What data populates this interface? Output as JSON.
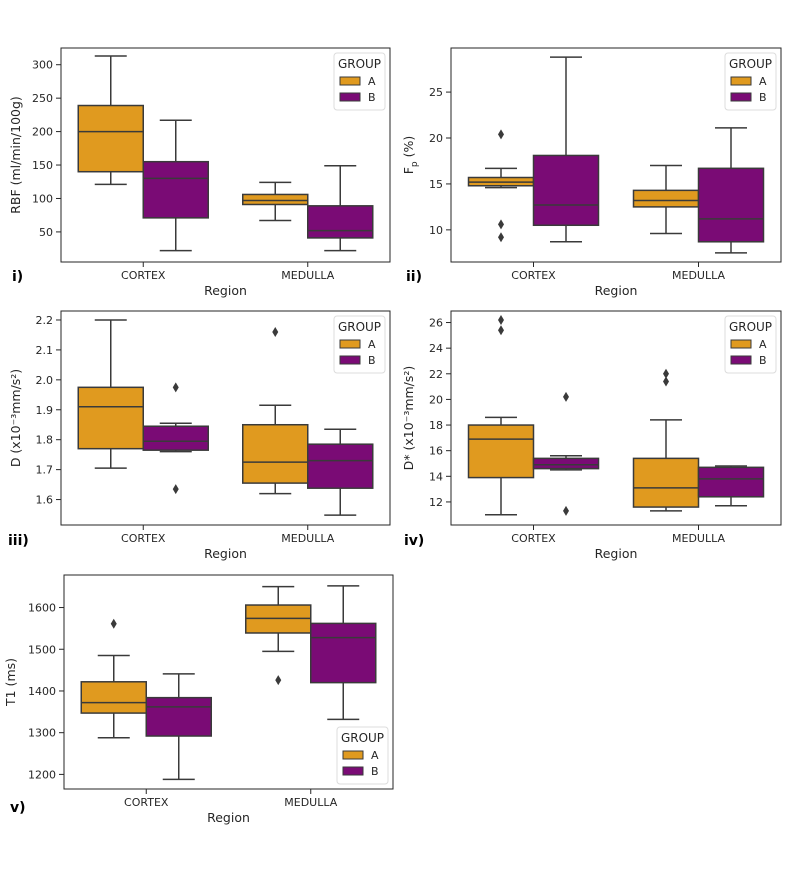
{
  "colors": {
    "A": "#e09a1f",
    "B": "#7a0b75",
    "line": "#3a3a3a"
  },
  "legend": {
    "title": "GROUP",
    "entries": [
      "A",
      "B"
    ]
  },
  "chart_data": [
    {
      "type": "box",
      "panel_label": "i)",
      "xlabel": "Region",
      "ylabel": "RBF (ml/min/100g)",
      "ylim": [
        5,
        325
      ],
      "yticks": [
        50,
        100,
        150,
        200,
        250,
        300
      ],
      "categories": [
        "CORTEX",
        "MEDULLA"
      ],
      "legend_position": "top-right",
      "series": [
        {
          "name": "A",
          "boxes": [
            {
              "whislo": 121,
              "q1": 140,
              "med": 200,
              "q3": 239,
              "whishi": 313,
              "fliers": []
            },
            {
              "whislo": 67,
              "q1": 91,
              "med": 97,
              "q3": 106,
              "whishi": 124,
              "fliers": []
            }
          ]
        },
        {
          "name": "B",
          "boxes": [
            {
              "whislo": 22,
              "q1": 71,
              "med": 130,
              "q3": 155,
              "whishi": 217,
              "fliers": []
            },
            {
              "whislo": 22,
              "q1": 41,
              "med": 52,
              "q3": 89,
              "whishi": 149,
              "fliers": []
            }
          ]
        }
      ]
    },
    {
      "type": "box",
      "panel_label": "ii)",
      "xlabel": "Region",
      "ylabel": "F_p (%)",
      "ylim": [
        6.5,
        29.8
      ],
      "yticks": [
        10,
        15,
        20,
        25
      ],
      "categories": [
        "CORTEX",
        "MEDULLA"
      ],
      "legend_position": "top-right",
      "series": [
        {
          "name": "A",
          "boxes": [
            {
              "whislo": 14.6,
              "q1": 14.8,
              "med": 15.2,
              "q3": 15.7,
              "whishi": 16.7,
              "fliers": [
                20.4,
                10.6,
                9.2
              ]
            },
            {
              "whislo": 9.6,
              "q1": 12.5,
              "med": 13.2,
              "q3": 14.3,
              "whishi": 17.0,
              "fliers": []
            }
          ]
        },
        {
          "name": "B",
          "boxes": [
            {
              "whislo": 8.7,
              "q1": 10.5,
              "med": 12.7,
              "q3": 18.1,
              "whishi": 28.8,
              "fliers": []
            },
            {
              "whislo": 7.5,
              "q1": 8.7,
              "med": 11.2,
              "q3": 16.7,
              "whishi": 21.1,
              "fliers": []
            }
          ]
        }
      ]
    },
    {
      "type": "box",
      "panel_label": "iii)",
      "xlabel": "Region",
      "ylabel": "D (x10⁻³mm/s²)",
      "ylim": [
        1.515,
        2.23
      ],
      "yticks": [
        1.6,
        1.7,
        1.8,
        1.9,
        2.0,
        2.1,
        2.2
      ],
      "categories": [
        "CORTEX",
        "MEDULLA"
      ],
      "legend_position": "top-right",
      "series": [
        {
          "name": "A",
          "boxes": [
            {
              "whislo": 1.705,
              "q1": 1.77,
              "med": 1.91,
              "q3": 1.975,
              "whishi": 2.2,
              "fliers": []
            },
            {
              "whislo": 1.62,
              "q1": 1.655,
              "med": 1.725,
              "q3": 1.85,
              "whishi": 1.915,
              "fliers": [
                2.16
              ]
            }
          ]
        },
        {
          "name": "B",
          "boxes": [
            {
              "whislo": 1.76,
              "q1": 1.765,
              "med": 1.795,
              "q3": 1.845,
              "whishi": 1.855,
              "fliers": [
                1.975,
                1.635
              ]
            },
            {
              "whislo": 1.548,
              "q1": 1.638,
              "med": 1.73,
              "q3": 1.785,
              "whishi": 1.835,
              "fliers": []
            }
          ]
        }
      ]
    },
    {
      "type": "box",
      "panel_label": "iv)",
      "xlabel": "Region",
      "ylabel": "D* (x10⁻³mm/s²)",
      "ylim": [
        10.2,
        26.9
      ],
      "yticks": [
        12,
        14,
        16,
        18,
        20,
        22,
        24,
        26
      ],
      "categories": [
        "CORTEX",
        "MEDULLA"
      ],
      "legend_position": "top-right",
      "series": [
        {
          "name": "A",
          "boxes": [
            {
              "whislo": 11.0,
              "q1": 13.9,
              "med": 16.9,
              "q3": 18.0,
              "whishi": 18.6,
              "fliers": [
                26.2,
                25.4
              ]
            },
            {
              "whislo": 11.3,
              "q1": 11.6,
              "med": 13.1,
              "q3": 15.4,
              "whishi": 18.4,
              "fliers": [
                22.0,
                21.4
              ]
            }
          ]
        },
        {
          "name": "B",
          "boxes": [
            {
              "whislo": 14.5,
              "q1": 14.6,
              "med": 14.9,
              "q3": 15.4,
              "whishi": 15.6,
              "fliers": [
                20.2,
                11.3
              ]
            },
            {
              "whislo": 11.7,
              "q1": 12.4,
              "med": 13.8,
              "q3": 14.7,
              "whishi": 14.8,
              "fliers": []
            }
          ]
        }
      ]
    },
    {
      "type": "box",
      "panel_label": "v)",
      "xlabel": "Region",
      "ylabel": "T1 (ms)",
      "ylim": [
        1165,
        1678
      ],
      "yticks": [
        1200,
        1300,
        1400,
        1500,
        1600
      ],
      "categories": [
        "CORTEX",
        "MEDULLA"
      ],
      "legend_position": "bottom-right",
      "series": [
        {
          "name": "A",
          "boxes": [
            {
              "whislo": 1288,
              "q1": 1347,
              "med": 1372,
              "q3": 1422,
              "whishi": 1485,
              "fliers": [
                1561
              ]
            },
            {
              "whislo": 1495,
              "q1": 1539,
              "med": 1574,
              "q3": 1606,
              "whishi": 1650,
              "fliers": [
                1426
              ]
            }
          ]
        },
        {
          "name": "B",
          "boxes": [
            {
              "whislo": 1188,
              "q1": 1292,
              "med": 1362,
              "q3": 1384,
              "whishi": 1441,
              "fliers": []
            },
            {
              "whislo": 1332,
              "q1": 1420,
              "med": 1528,
              "q3": 1562,
              "whishi": 1652,
              "fliers": []
            }
          ]
        }
      ]
    }
  ]
}
